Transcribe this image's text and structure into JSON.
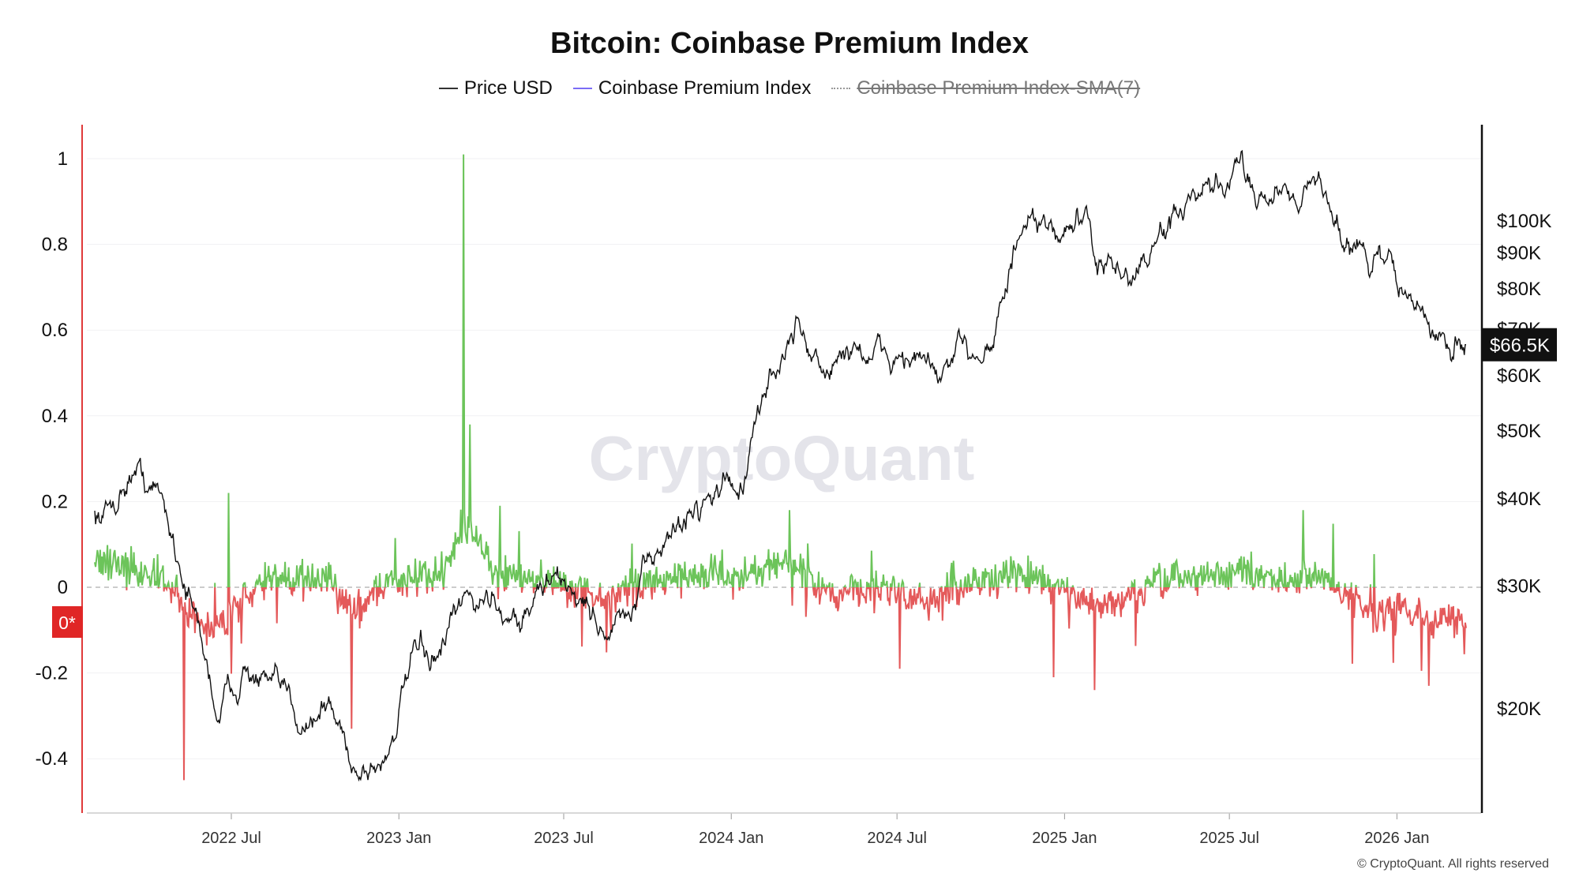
{
  "chart_data": {
    "type": "line",
    "title": "Bitcoin: Coinbase Premium Index",
    "legend": [
      {
        "label": "Price USD",
        "color": "#333333",
        "enabled": true
      },
      {
        "label": "Coinbase Premium Index",
        "color": "#7b6cf6",
        "enabled": true
      },
      {
        "label": "Coinbase Premium Index-SMA(7)",
        "color": "#999999",
        "enabled": false
      }
    ],
    "legend_placement": "top-center",
    "watermark": "CryptoQuant",
    "copyright": "© CryptoQuant. All rights reserved",
    "x_ticks": [
      "2022 Jul",
      "2023 Jan",
      "2023 Jul",
      "2024 Jan",
      "2024 Jul",
      "2025 Jan",
      "2025 Jul",
      "2026 Jan"
    ],
    "x_range": [
      "2022-02",
      "2026-03"
    ],
    "left_axis": {
      "ticks": [
        "1",
        "0.8",
        "0.6",
        "0.4",
        "0.2",
        "0",
        "-0.2",
        "-0.4"
      ],
      "range": [
        -0.52,
        1.1
      ],
      "zero_label": "0*"
    },
    "right_axis": {
      "scale": "log",
      "ticks": [
        "$100K",
        "$90K",
        "$80K",
        "$70K",
        "$60K",
        "$50K",
        "$40K",
        "$30K",
        "$20K"
      ],
      "tick_values": [
        100000,
        90000,
        80000,
        70000,
        60000,
        50000,
        40000,
        30000,
        20000
      ],
      "current_label": "$66.5K",
      "current_value": 66500
    },
    "colors": {
      "positive": "#6cc45a",
      "negative": "#e4595a",
      "price": "#111111",
      "left_axis": "#e03a3a"
    },
    "price_series": {
      "months": [
        "2022-02",
        "2022-03",
        "2022-04",
        "2022-05",
        "2022-06",
        "2022-07",
        "2022-08",
        "2022-09",
        "2022-10",
        "2022-11",
        "2022-12",
        "2023-01",
        "2023-02",
        "2023-03",
        "2023-04",
        "2023-05",
        "2023-06",
        "2023-07",
        "2023-08",
        "2023-09",
        "2023-10",
        "2023-11",
        "2023-12",
        "2024-01",
        "2024-02",
        "2024-03",
        "2024-04",
        "2024-05",
        "2024-06",
        "2024-07",
        "2024-08",
        "2024-09",
        "2024-10",
        "2024-11",
        "2024-12",
        "2025-01",
        "2025-02",
        "2025-03",
        "2025-04",
        "2025-05",
        "2025-06",
        "2025-07",
        "2025-08",
        "2025-09",
        "2025-10",
        "2025-11",
        "2025-12",
        "2026-01",
        "2026-02",
        "2026-03"
      ],
      "values": [
        38000,
        44500,
        40000,
        30000,
        20000,
        23000,
        21000,
        19500,
        20300,
        16500,
        16800,
        23000,
        23500,
        28000,
        29000,
        27000,
        30500,
        29300,
        26000,
        27000,
        34500,
        37700,
        42300,
        42500,
        61000,
        70000,
        60000,
        67000,
        62700,
        64600,
        59000,
        63300,
        70000,
        96000,
        93000,
        102000,
        84000,
        82000,
        94000,
        104000,
        107000,
        117000,
        110000,
        114000,
        110000,
        91000,
        87000,
        78000,
        67000,
        66500
      ]
    },
    "premium_series": {
      "months": [
        "2022-02",
        "2022-03",
        "2022-04",
        "2022-05",
        "2022-06",
        "2022-07",
        "2022-08",
        "2022-09",
        "2022-10",
        "2022-11",
        "2022-12",
        "2023-01",
        "2023-02",
        "2023-03",
        "2023-04",
        "2023-05",
        "2023-06",
        "2023-07",
        "2023-08",
        "2023-09",
        "2023-10",
        "2023-11",
        "2023-12",
        "2024-01",
        "2024-02",
        "2024-03",
        "2024-04",
        "2024-05",
        "2024-06",
        "2024-07",
        "2024-08",
        "2024-09",
        "2024-10",
        "2024-11",
        "2024-12",
        "2025-01",
        "2025-02",
        "2025-03",
        "2025-04",
        "2025-05",
        "2025-06",
        "2025-07",
        "2025-08",
        "2025-09",
        "2025-10",
        "2025-11",
        "2025-12",
        "2026-01",
        "2026-02",
        "2026-03"
      ],
      "values": [
        0.06,
        0.04,
        0.02,
        -0.06,
        -0.1,
        -0.02,
        0.02,
        0.02,
        0.01,
        -0.05,
        0.01,
        0.02,
        0.03,
        0.15,
        0.04,
        0.02,
        0.01,
        -0.01,
        -0.03,
        0.0,
        0.03,
        0.02,
        0.04,
        0.02,
        0.05,
        0.04,
        -0.02,
        -0.01,
        0.0,
        -0.02,
        -0.03,
        0.01,
        0.02,
        0.03,
        0.01,
        -0.02,
        -0.05,
        -0.02,
        0.01,
        0.02,
        0.03,
        0.04,
        0.02,
        0.02,
        0.02,
        -0.04,
        -0.06,
        -0.05,
        -0.08,
        -0.07
      ],
      "spikes": [
        {
          "date": "2022-05-10",
          "value": -0.45
        },
        {
          "date": "2022-06-28",
          "value": 0.22
        },
        {
          "date": "2022-11-10",
          "value": -0.33
        },
        {
          "date": "2023-03-13",
          "value": 1.01
        },
        {
          "date": "2023-03-20",
          "value": 0.38
        },
        {
          "date": "2023-04-22",
          "value": 0.19
        },
        {
          "date": "2024-03-05",
          "value": 0.18
        },
        {
          "date": "2024-07-04",
          "value": -0.19
        },
        {
          "date": "2024-12-20",
          "value": -0.21
        },
        {
          "date": "2025-02-03",
          "value": -0.24
        },
        {
          "date": "2025-09-20",
          "value": 0.18
        },
        {
          "date": "2026-02-05",
          "value": -0.23
        }
      ]
    }
  }
}
